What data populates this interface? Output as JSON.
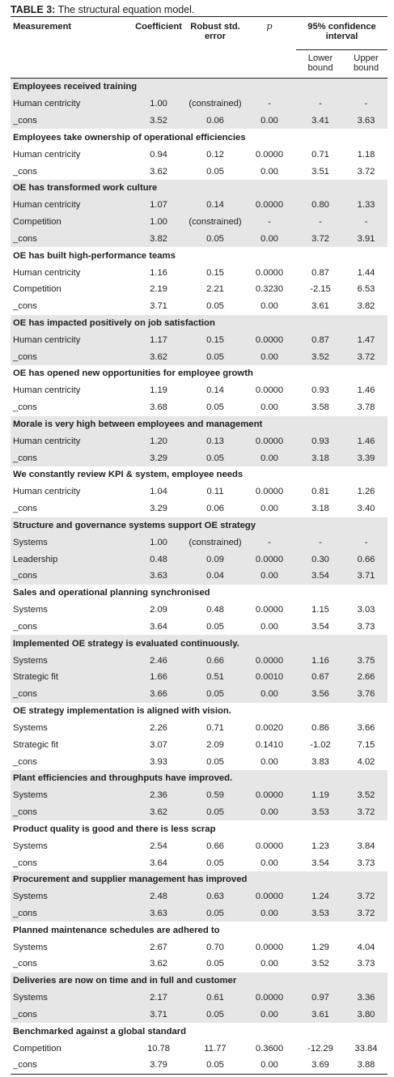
{
  "caption": {
    "label": "TABLE 3:",
    "text": "The structural equation model."
  },
  "header": {
    "measurement": "Measurement",
    "coefficient": "Coefficient",
    "robust_se": "Robust std. error",
    "p": "p",
    "ci": "95% confidence interval",
    "lower": "Lower bound",
    "upper": "Upper bound"
  },
  "groups": [
    {
      "title": "Employees received training",
      "rows": [
        [
          "Human centricity",
          "1.00",
          "(constrained)",
          "-",
          "-",
          "-"
        ],
        [
          "_cons",
          "3.52",
          "0.06",
          "0.00",
          "3.41",
          "3.63"
        ]
      ]
    },
    {
      "title": "Employees take ownership of operational efficiencies",
      "rows": [
        [
          "Human centricity",
          "0.94",
          "0.12",
          "0.0000",
          "0.71",
          "1.18"
        ],
        [
          "_cons",
          "3.62",
          "0.05",
          "0.00",
          "3.51",
          "3.72"
        ]
      ]
    },
    {
      "title": "OE has transformed work culture",
      "rows": [
        [
          "Human centricity",
          "1.07",
          "0.14",
          "0.0000",
          "0.80",
          "1.33"
        ],
        [
          "Competition",
          "1.00",
          "(constrained)",
          "-",
          "-",
          "-"
        ],
        [
          "_cons",
          "3.82",
          "0.05",
          "0.00",
          "3.72",
          "3.91"
        ]
      ]
    },
    {
      "title": "OE has built high-performance teams",
      "rows": [
        [
          "Human centricity",
          "1.16",
          "0.15",
          "0.0000",
          "0.87",
          "1.44"
        ],
        [
          "Competition",
          "2.19",
          "2.21",
          "0.3230",
          "-2.15",
          "6.53"
        ],
        [
          "_cons",
          "3.71",
          "0.05",
          "0.00",
          "3.61",
          "3.82"
        ]
      ]
    },
    {
      "title": "OE has impacted positively on job satisfaction",
      "rows": [
        [
          "Human centricity",
          "1.17",
          "0.15",
          "0.0000",
          "0.87",
          "1.47"
        ],
        [
          "_cons",
          "3.62",
          "0.05",
          "0.00",
          "3.52",
          "3.72"
        ]
      ]
    },
    {
      "title": "OE has opened new opportunities for employee growth",
      "rows": [
        [
          "Human centricity",
          "1.19",
          "0.14",
          "0.0000",
          "0.93",
          "1.46"
        ],
        [
          "_cons",
          "3.68",
          "0.05",
          "0.00",
          "3.58",
          "3.78"
        ]
      ]
    },
    {
      "title": "Morale is very high between employees and management",
      "rows": [
        [
          "Human centricity",
          "1.20",
          "0.13",
          "0.0000",
          "0.93",
          "1.46"
        ],
        [
          "_cons",
          "3.29",
          "0.05",
          "0.00",
          "3.18",
          "3.39"
        ]
      ]
    },
    {
      "title": "We constantly review KPI & system, employee needs",
      "rows": [
        [
          "Human centricity",
          "1.04",
          "0.11",
          "0.0000",
          "0.81",
          "1.26"
        ],
        [
          "_cons",
          "3.29",
          "0.06",
          "0.00",
          "3.18",
          "3.40"
        ]
      ]
    },
    {
      "title": "Structure and governance systems support OE strategy",
      "rows": [
        [
          "Systems",
          "1.00",
          "(constrained)",
          "-",
          "-",
          "-"
        ],
        [
          "Leadership",
          "0.48",
          "0.09",
          "0.0000",
          "0.30",
          "0.66"
        ],
        [
          "_cons",
          "3.63",
          "0.04",
          "0.00",
          "3.54",
          "3.71"
        ]
      ]
    },
    {
      "title": "Sales and operational planning synchronised",
      "rows": [
        [
          "Systems",
          "2.09",
          "0.48",
          "0.0000",
          "1.15",
          "3.03"
        ],
        [
          "_cons",
          "3.64",
          "0.05",
          "0.00",
          "3.54",
          "3.73"
        ]
      ]
    },
    {
      "title": "Implemented OE strategy is evaluated continuously.",
      "rows": [
        [
          "Systems",
          "2.46",
          "0.66",
          "0.0000",
          "1.16",
          "3.75"
        ],
        [
          "Strategic fit",
          "1.66",
          "0.51",
          "0.0010",
          "0.67",
          "2.66"
        ],
        [
          "_cons",
          "3.66",
          "0.05",
          "0.00",
          "3.56",
          "3.76"
        ]
      ]
    },
    {
      "title": "OE strategy implementation is aligned with vision.",
      "rows": [
        [
          "Systems",
          "2.26",
          "0.71",
          "0.0020",
          "0.86",
          "3.66"
        ],
        [
          "Strategic fit",
          "3.07",
          "2.09",
          "0.1410",
          "-1.02",
          "7.15"
        ],
        [
          "_cons",
          "3.93",
          "0.05",
          "0.00",
          "3.83",
          "4.02"
        ]
      ]
    },
    {
      "title": "Plant efficiencies and throughputs have improved.",
      "rows": [
        [
          "Systems",
          "2.36",
          "0.59",
          "0.0000",
          "1.19",
          "3.52"
        ],
        [
          "_cons",
          "3.62",
          "0.05",
          "0.00",
          "3.53",
          "3.72"
        ]
      ]
    },
    {
      "title": "Product quality is good and there is less scrap",
      "rows": [
        [
          "Systems",
          "2.54",
          "0.66",
          "0.0000",
          "1.23",
          "3.84"
        ],
        [
          "_cons",
          "3.64",
          "0.05",
          "0.00",
          "3.54",
          "3.73"
        ]
      ]
    },
    {
      "title": "Procurement and supplier management has improved",
      "rows": [
        [
          "Systems",
          "2.48",
          "0.63",
          "0.0000",
          "1.24",
          "3.72"
        ],
        [
          "_cons",
          "3.63",
          "0.05",
          "0.00",
          "3.53",
          "3.72"
        ]
      ]
    },
    {
      "title": "Planned maintenance schedules are adhered to",
      "rows": [
        [
          "Systems",
          "2.67",
          "0.70",
          "0.0000",
          "1.29",
          "4.04"
        ],
        [
          "_cons",
          "3.62",
          "0.05",
          "0.00",
          "3.52",
          "3.73"
        ]
      ]
    },
    {
      "title": "Deliveries are now on time and in full and customer",
      "rows": [
        [
          "Systems",
          "2.17",
          "0.61",
          "0.0000",
          "0.97",
          "3.36"
        ],
        [
          "_cons",
          "3.71",
          "0.05",
          "0.00",
          "3.61",
          "3.80"
        ]
      ]
    },
    {
      "title": "Benchmarked against a global standard",
      "rows": [
        [
          "Competition",
          "10.78",
          "11.77",
          "0.3600",
          "-12.29",
          "33.84"
        ],
        [
          "_cons",
          "3.79",
          "0.05",
          "0.00",
          "3.69",
          "3.88"
        ]
      ]
    }
  ]
}
